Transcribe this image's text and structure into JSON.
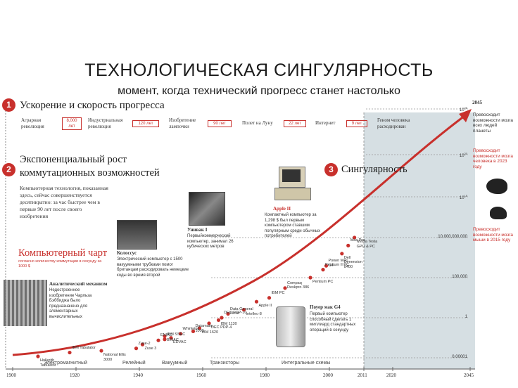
{
  "header": {
    "title": "ТЕХНОЛОГИЧЕСКАЯ СИНГУЛЯРНОСТЬ",
    "subtitle": "момент, когда технический прогресс станет настолько"
  },
  "section1": {
    "number": "1",
    "heading": "Ускорение и скорость прогресса",
    "steps": [
      {
        "label": "Аграрная революция",
        "gap": "8,000 лет"
      },
      {
        "label": "Индустриальная революция",
        "gap": "120 лет"
      },
      {
        "label": "Изобретение лампочки",
        "gap": "90 лет"
      },
      {
        "label": "Полет на Луну",
        "gap": "22 лет"
      },
      {
        "label": "Интернет",
        "gap": "9 лет"
      },
      {
        "label": "Геном человека расходирован",
        "gap": ""
      }
    ]
  },
  "section2": {
    "number": "2",
    "heading_line1": "Экспоненциальный рост",
    "heading_line2": "коммутационных возможностей",
    "body": "Компьютерная технология, показанная здесь, сейчас совершенствуется десятикратно: за час быстрее чем в первые 90 лет после своего изобретения"
  },
  "section3": {
    "number": "3",
    "heading": "Сингулярность"
  },
  "chart_heading": {
    "title": "Компьютерный чарт",
    "subtitle": "согласно количеству коммутации в секунду за 1000 $"
  },
  "notes": {
    "analytic_title": "Аналитический механизм",
    "analytic_body": "Недостроенное изобретение Чарльза Бэббиджа было предназначено для элементарных вычислительных",
    "colossus_title": "Колоссус",
    "colossus_body": "Электрический компьютер с 1500 вакуумными трубками помог британцам расходировать немецкие коды во время второй",
    "univac_title": "Унивак I",
    "univac_body": "Первыйкоммерческий компьютер, занимал 26 кубических метров",
    "apple_title": "Apple II",
    "apple_body": "Компактный компьютер за 1,298 $ был первым компьютером ставшим популярным среди обычных потребителей",
    "g4_title": "Поуер мак G4",
    "g4_body": "Первый компьютер способный сделать 1 миллиард стандартных операций в секунду",
    "y2045": "2045",
    "human_note": "Превосходит возможности мозга всех людей планеты",
    "human_2023": "Превосходит возможности мозга человека в 2023 году",
    "mouse_2015": "Превосходит возможности мозга мыши в 2015 году"
  },
  "axis": {
    "y_labels": [
      "10^26",
      "10^20",
      "10^15",
      "10,000,000,000",
      "100,000",
      "1",
      "0.00001"
    ],
    "x_labels": [
      "1900",
      "1920",
      "1940",
      "1960",
      "1980",
      "2000",
      "2011",
      "2020",
      "2045"
    ],
    "eras": [
      "Электромагнитный",
      "Релейный",
      "Вакуумный",
      "Транзисторы",
      "Интегральные схемы"
    ]
  },
  "chart_data": {
    "type": "scatter",
    "xlabel": "",
    "ylabel": "",
    "points": [
      {
        "name": "Hollerith Tabulator",
        "x": 1908,
        "y": 1e-05
      },
      {
        "name": "IBM Tabulator",
        "x": 1918,
        "y": 3e-05
      },
      {
        "name": "National Ellis 3000",
        "x": 1928,
        "y": 5e-05
      },
      {
        "name": "Zuse-2",
        "x": 1939,
        "y": 0.0001
      },
      {
        "name": "Zuse 3",
        "x": 1941,
        "y": 0.0003
      },
      {
        "name": "ENIAC",
        "x": 1946,
        "y": 0.001
      },
      {
        "name": "BINAC",
        "x": 1948,
        "y": 0.005
      },
      {
        "name": "IBM SSEC",
        "x": 1948,
        "y": 0.002
      },
      {
        "name": "EDVAC",
        "x": 1950,
        "y": 0.003
      },
      {
        "name": "Whirlwind",
        "x": 1953,
        "y": 0.01
      },
      {
        "name": "IBM 1620",
        "x": 1959,
        "y": 0.05
      },
      {
        "name": "Datamatic 1000",
        "x": 1957,
        "y": 0.02
      },
      {
        "name": "DEC PDP-4",
        "x": 1962,
        "y": 0.2
      },
      {
        "name": "DEC PDP-10",
        "x": 1966,
        "y": 1
      },
      {
        "name": "IBM 1130",
        "x": 1965,
        "y": 0.5
      },
      {
        "name": "Data General Nova",
        "x": 1968,
        "y": 3
      },
      {
        "name": "Intellec-8",
        "x": 1973,
        "y": 10
      },
      {
        "name": "IBM PC",
        "x": 1981,
        "y": 300
      },
      {
        "name": "Apple II",
        "x": 1977,
        "y": 100
      },
      {
        "name": "Compaq Deskpro 386",
        "x": 1986,
        "y": 5000
      },
      {
        "name": "Pentium PC",
        "x": 1994,
        "y": 100000
      },
      {
        "name": "Pentium II PC",
        "x": 1998,
        "y": 1000000
      },
      {
        "name": "Dell Dimension 8400",
        "x": 2004,
        "y": 100000000
      },
      {
        "name": "Mac Pro",
        "x": 2006,
        "y": 1000000000
      },
      {
        "name": "Nvidia Tesla GPU & PC",
        "x": 2008,
        "y": 10000000000
      },
      {
        "name": "Power Mac G4",
        "x": 1999,
        "y": 3000000
      }
    ],
    "x_range": [
      1900,
      2045
    ],
    "y_scale": "log"
  },
  "colors": {
    "accent": "#c8302c",
    "future_shade": "#d6dfe3"
  }
}
